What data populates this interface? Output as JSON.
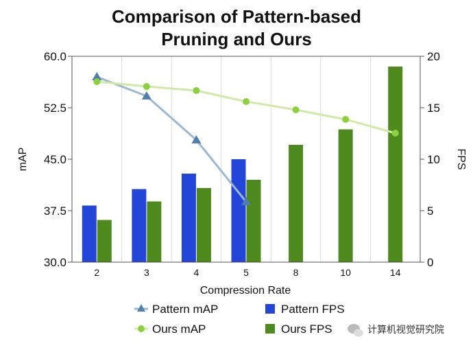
{
  "chart_data": {
    "type": "bar",
    "title_lines": [
      "Comparison of Pattern-based",
      "Pruning and Ours"
    ],
    "xlabel": "Compression Rate",
    "ylabel_left": "mAP",
    "ylabel_right": "FPS",
    "categories": [
      "2",
      "3",
      "4",
      "5",
      "8",
      "10",
      "14"
    ],
    "ylim_left": [
      30.0,
      60.0
    ],
    "yticks_left": [
      "30.0",
      "37.5",
      "45.0",
      "52.5",
      "60.0"
    ],
    "ylim_right": [
      0,
      20
    ],
    "yticks_right": [
      "0",
      "5",
      "10",
      "15",
      "20"
    ],
    "grid": "vertical",
    "legend_position": "bottom",
    "series": [
      {
        "name": "Pattern mAP",
        "kind": "line",
        "axis": "left",
        "marker": "triangle",
        "color": "#9bb7d4",
        "marker_color": "#4f7fad",
        "values": [
          57.0,
          54.2,
          47.8,
          38.8,
          null,
          null,
          null
        ]
      },
      {
        "name": "Ours mAP",
        "kind": "line",
        "axis": "left",
        "marker": "circle",
        "color": "#cfe9a6",
        "marker_color": "#8ccf3f",
        "values": [
          56.3,
          55.6,
          55.0,
          53.4,
          52.2,
          50.8,
          48.8
        ]
      },
      {
        "name": "Pattern FPS",
        "kind": "bar",
        "axis": "right",
        "color": "#2345d8",
        "values": [
          5.5,
          7.1,
          8.6,
          10.0,
          null,
          null,
          null
        ]
      },
      {
        "name": "Ours FPS",
        "kind": "bar",
        "axis": "right",
        "color": "#4f8a1f",
        "values": [
          4.1,
          5.9,
          7.2,
          8.0,
          11.4,
          12.9,
          19.0
        ]
      }
    ]
  },
  "watermark": "计算机视觉研究院"
}
